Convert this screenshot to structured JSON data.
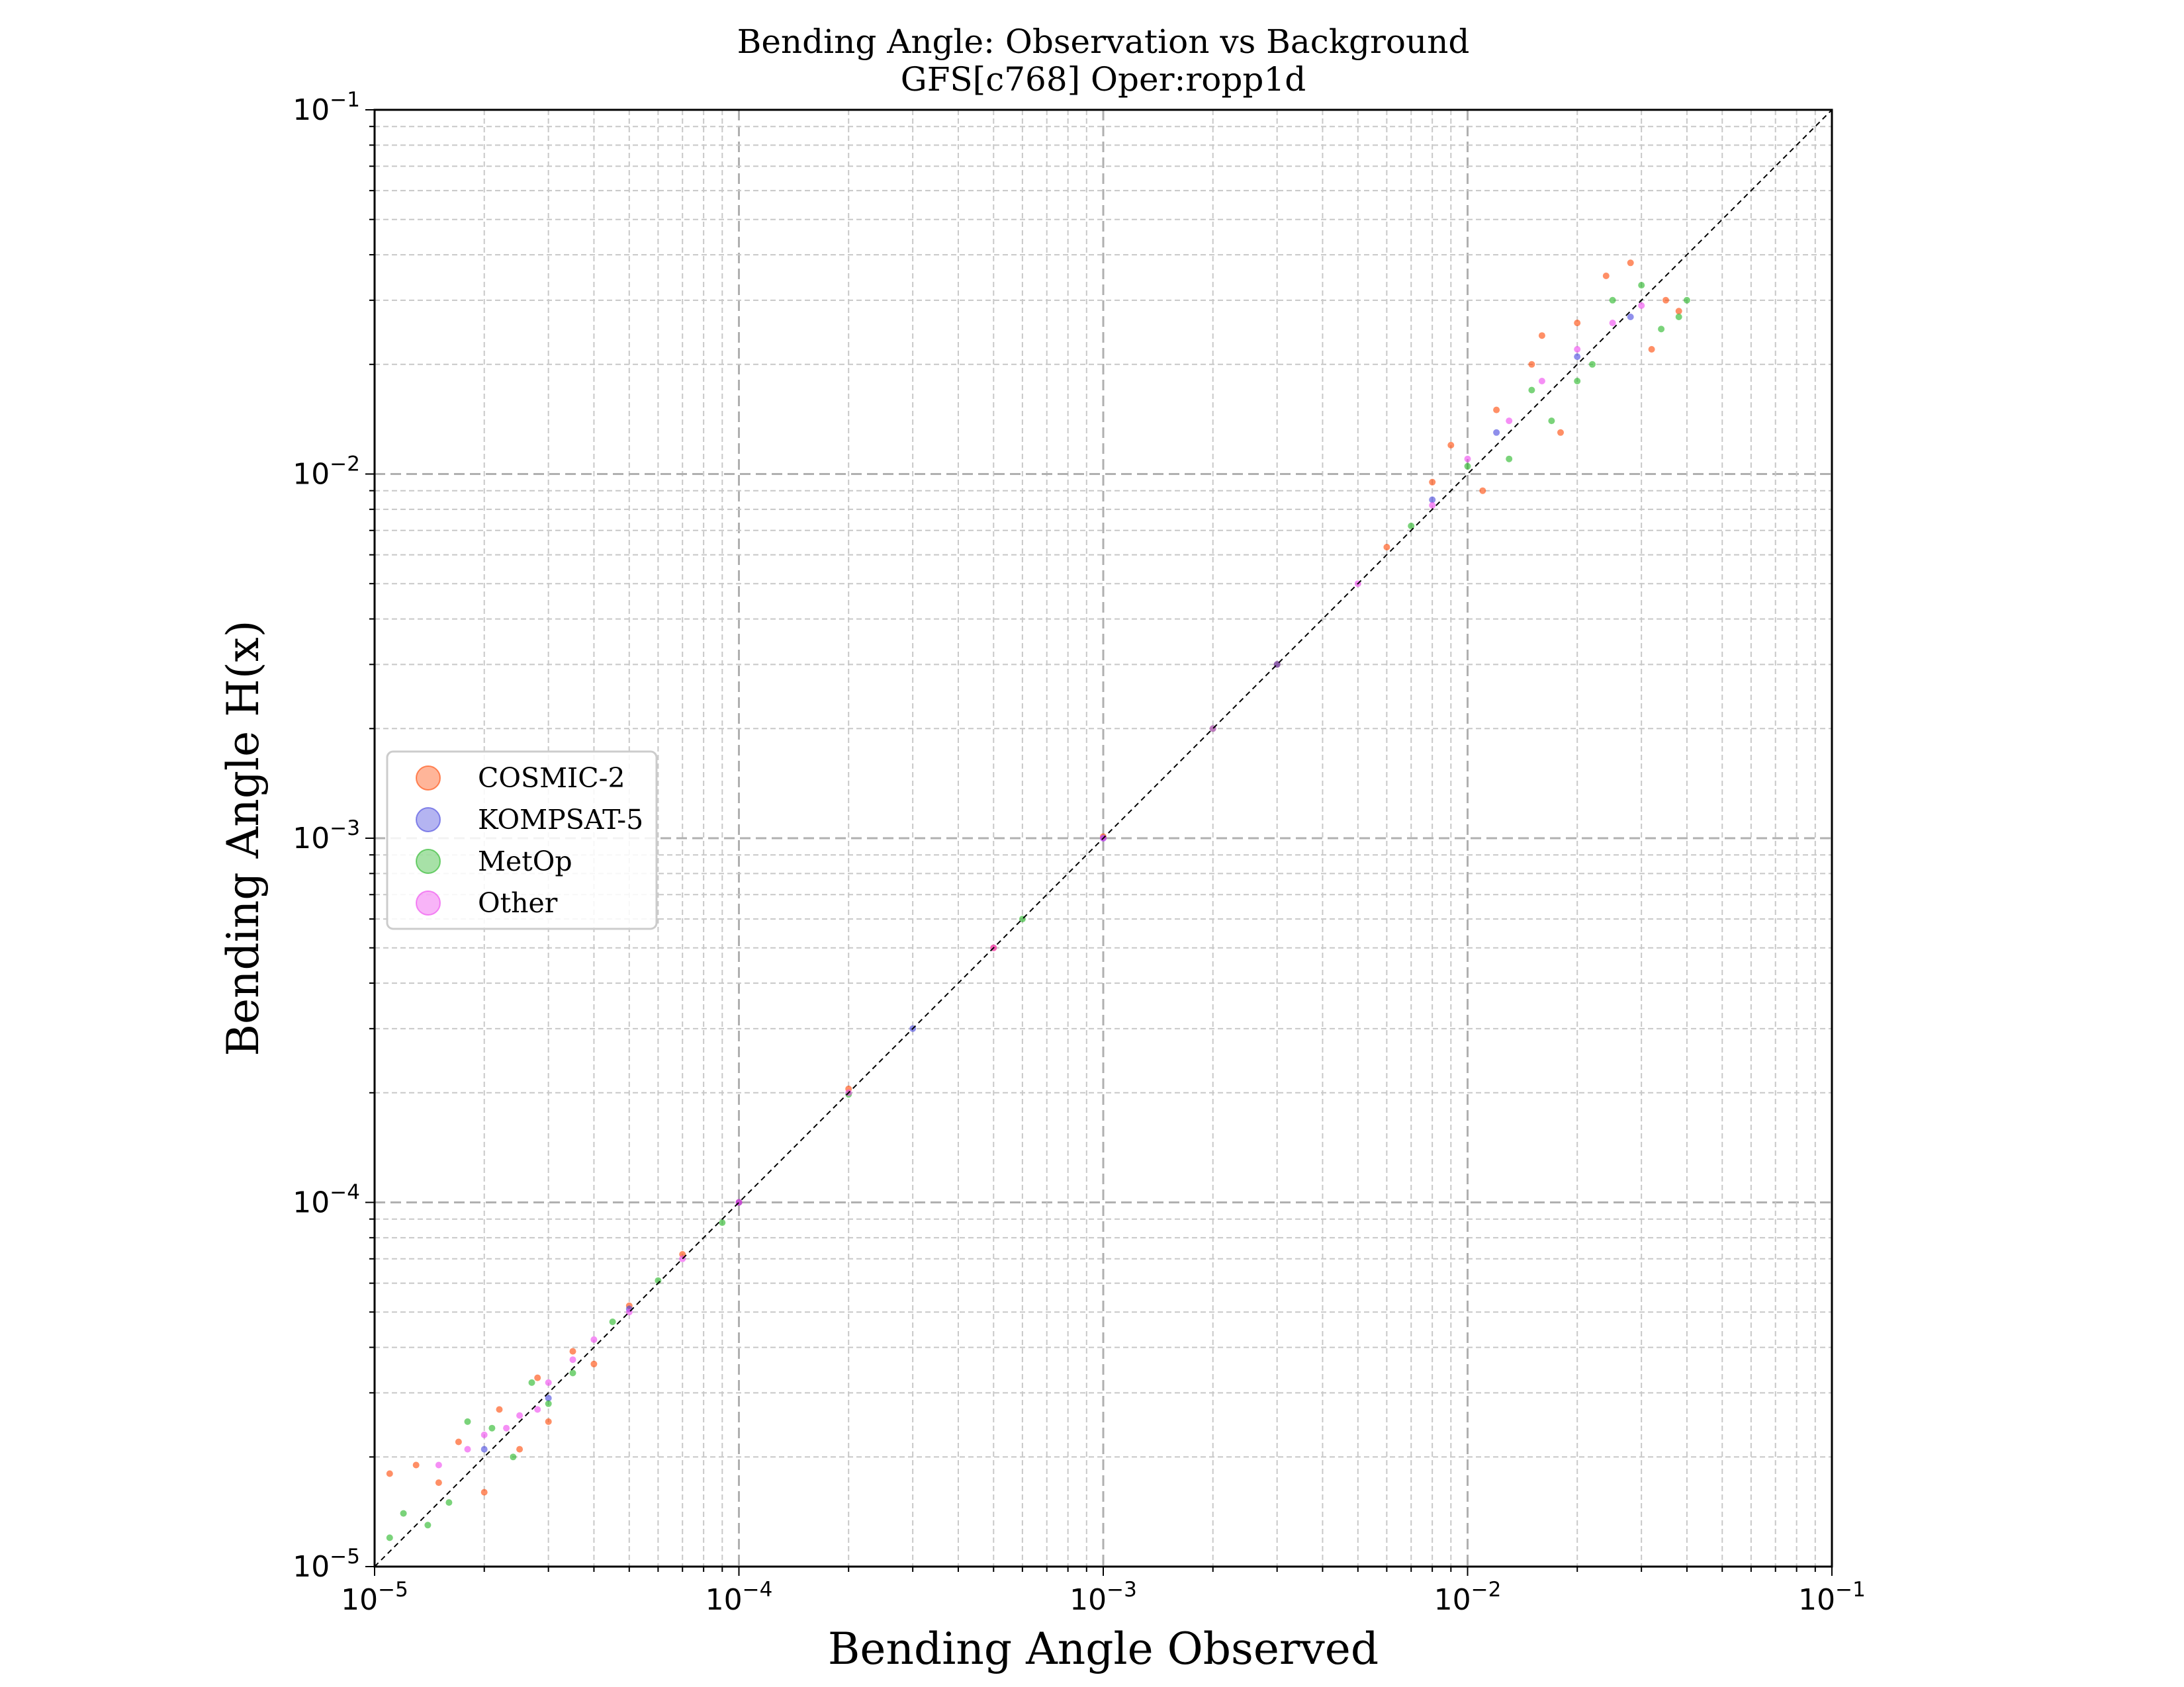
{
  "chart_data": {
    "type": "scatter",
    "title": "Bending Angle: Observation vs Background",
    "subtitle": "GFS[c768] Oper:ropp1d",
    "xlabel": "Bending Angle Observed",
    "ylabel": "Bending Angle H(x)",
    "xscale": "log",
    "yscale": "log",
    "xlim": [
      1e-05,
      0.1
    ],
    "ylim": [
      1e-05,
      0.1
    ],
    "grid": true,
    "legend_position": "center-left",
    "reference_line": "y = x (dashed black)",
    "x_ticks": [
      {
        "value": 1e-05,
        "base": "10",
        "exp": "−5"
      },
      {
        "value": 0.0001,
        "base": "10",
        "exp": "−4"
      },
      {
        "value": 0.001,
        "base": "10",
        "exp": "−3"
      },
      {
        "value": 0.01,
        "base": "10",
        "exp": "−2"
      },
      {
        "value": 0.1,
        "base": "10",
        "exp": "−1"
      }
    ],
    "y_ticks": [
      {
        "value": 1e-05,
        "base": "10",
        "exp": "−5"
      },
      {
        "value": 0.0001,
        "base": "10",
        "exp": "−4"
      },
      {
        "value": 0.001,
        "base": "10",
        "exp": "−3"
      },
      {
        "value": 0.01,
        "base": "10",
        "exp": "−2"
      },
      {
        "value": 0.1,
        "base": "10",
        "exp": "−1"
      }
    ],
    "series": [
      {
        "name": "COSMIC-2",
        "color": "#ff4500",
        "points": [
          [
            1.1e-05,
            1.8e-05
          ],
          [
            1.3e-05,
            1.9e-05
          ],
          [
            1.5e-05,
            1.7e-05
          ],
          [
            1.7e-05,
            2.2e-05
          ],
          [
            2e-05,
            1.6e-05
          ],
          [
            2.2e-05,
            2.7e-05
          ],
          [
            2.5e-05,
            2.1e-05
          ],
          [
            2.8e-05,
            3.3e-05
          ],
          [
            3e-05,
            2.5e-05
          ],
          [
            3.5e-05,
            3.9e-05
          ],
          [
            4e-05,
            3.6e-05
          ],
          [
            5e-05,
            5.2e-05
          ],
          [
            7e-05,
            7.2e-05
          ],
          [
            0.0001,
            0.0001
          ],
          [
            0.0002,
            0.000205
          ],
          [
            0.0005,
            0.0005
          ],
          [
            0.001,
            0.00101
          ],
          [
            0.003,
            0.003
          ],
          [
            0.006,
            0.0063
          ],
          [
            0.008,
            0.0095
          ],
          [
            0.009,
            0.012
          ],
          [
            0.011,
            0.009
          ],
          [
            0.012,
            0.015
          ],
          [
            0.015,
            0.02
          ],
          [
            0.018,
            0.013
          ],
          [
            0.02,
            0.026
          ],
          [
            0.024,
            0.035
          ],
          [
            0.028,
            0.038
          ],
          [
            0.032,
            0.022
          ],
          [
            0.035,
            0.03
          ],
          [
            0.038,
            0.028
          ],
          [
            0.016,
            0.024
          ]
        ]
      },
      {
        "name": "KOMPSAT-5",
        "color": "#4444dd",
        "points": [
          [
            2e-05,
            2.1e-05
          ],
          [
            3e-05,
            2.9e-05
          ],
          [
            5e-05,
            5.1e-05
          ],
          [
            0.0001,
            0.0001
          ],
          [
            0.0003,
            0.0003
          ],
          [
            0.001,
            0.001
          ],
          [
            0.003,
            0.003
          ],
          [
            0.008,
            0.0085
          ],
          [
            0.012,
            0.013
          ],
          [
            0.02,
            0.021
          ],
          [
            0.028,
            0.027
          ]
        ]
      },
      {
        "name": "MetOp",
        "color": "#22b522",
        "points": [
          [
            1.1e-05,
            1.2e-05
          ],
          [
            1.2e-05,
            1.4e-05
          ],
          [
            1.4e-05,
            1.3e-05
          ],
          [
            1.6e-05,
            1.5e-05
          ],
          [
            1.8e-05,
            2.5e-05
          ],
          [
            2.1e-05,
            2.4e-05
          ],
          [
            2.4e-05,
            2e-05
          ],
          [
            2.7e-05,
            3.2e-05
          ],
          [
            3e-05,
            2.8e-05
          ],
          [
            3.5e-05,
            3.4e-05
          ],
          [
            4.5e-05,
            4.7e-05
          ],
          [
            6e-05,
            6.1e-05
          ],
          [
            9e-05,
            8.8e-05
          ],
          [
            0.0002,
            0.000198
          ],
          [
            0.0006,
            0.0006
          ],
          [
            0.002,
            0.002
          ],
          [
            0.007,
            0.0072
          ],
          [
            0.01,
            0.0105
          ],
          [
            0.013,
            0.011
          ],
          [
            0.015,
            0.017
          ],
          [
            0.017,
            0.014
          ],
          [
            0.02,
            0.018
          ],
          [
            0.022,
            0.02
          ],
          [
            0.025,
            0.03
          ],
          [
            0.03,
            0.033
          ],
          [
            0.034,
            0.025
          ],
          [
            0.038,
            0.027
          ],
          [
            0.04,
            0.03
          ]
        ]
      },
      {
        "name": "Other",
        "color": "#ee44ee",
        "points": [
          [
            1.5e-05,
            1.9e-05
          ],
          [
            1.8e-05,
            2.1e-05
          ],
          [
            2e-05,
            2.3e-05
          ],
          [
            2.3e-05,
            2.4e-05
          ],
          [
            2.5e-05,
            2.6e-05
          ],
          [
            2.8e-05,
            2.7e-05
          ],
          [
            3e-05,
            3.2e-05
          ],
          [
            3.5e-05,
            3.7e-05
          ],
          [
            4e-05,
            4.2e-05
          ],
          [
            5e-05,
            5e-05
          ],
          [
            7e-05,
            7e-05
          ],
          [
            0.0001,
            0.0001
          ],
          [
            0.0002,
            0.0002
          ],
          [
            0.0005,
            0.0005
          ],
          [
            0.001,
            0.001
          ],
          [
            0.002,
            0.002
          ],
          [
            0.005,
            0.005
          ],
          [
            0.008,
            0.0082
          ],
          [
            0.01,
            0.011
          ],
          [
            0.013,
            0.014
          ],
          [
            0.016,
            0.018
          ],
          [
            0.02,
            0.022
          ],
          [
            0.025,
            0.026
          ],
          [
            0.03,
            0.029
          ]
        ]
      }
    ]
  }
}
